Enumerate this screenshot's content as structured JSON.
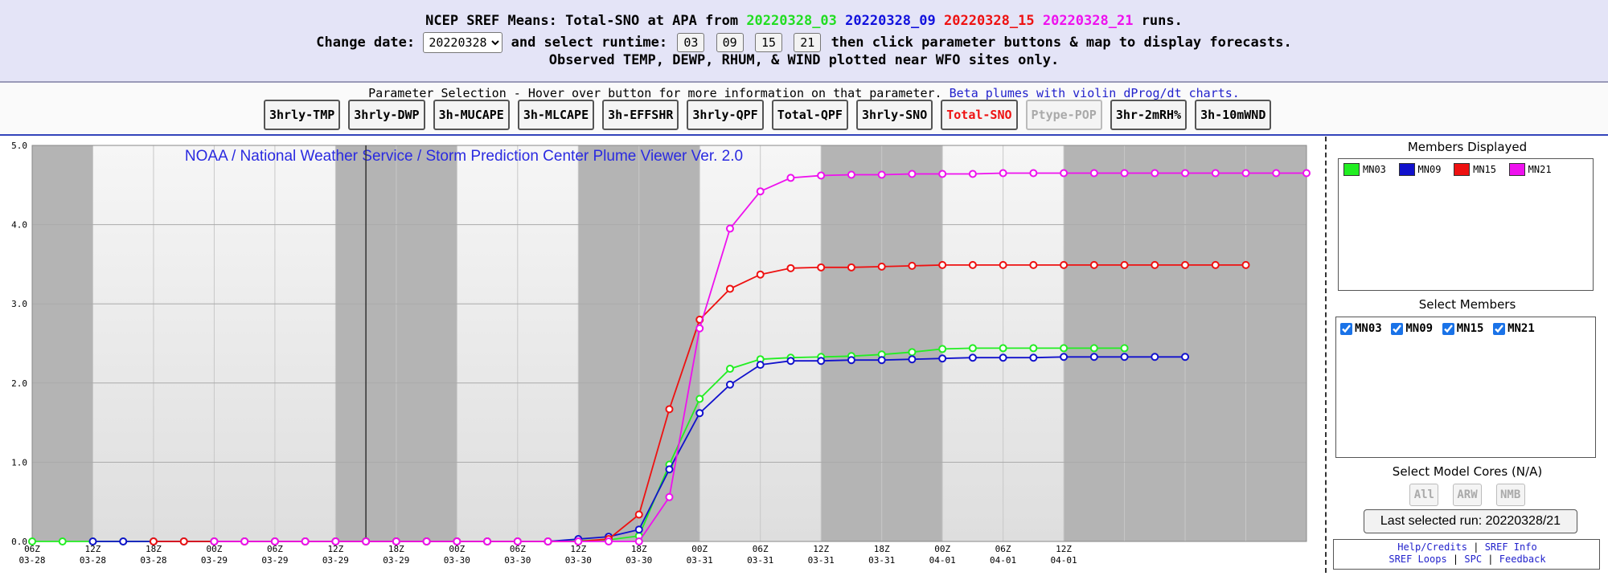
{
  "header": {
    "title_prefix": "NCEP SREF Means: Total-SNO at APA from",
    "runs": [
      {
        "label": "20220328_03",
        "color": "#22dd22"
      },
      {
        "label": "20220328_09",
        "color": "#1111dd"
      },
      {
        "label": "20220328_15",
        "color": "#ee1111"
      },
      {
        "label": "20220328_21",
        "color": "#ee11ee"
      }
    ],
    "title_suffix": "runs.",
    "change_date_label": "Change date:",
    "date_value": "20220328",
    "select_runtime_label": "and select runtime:",
    "runtimes": [
      "03",
      "09",
      "15",
      "21"
    ],
    "runtime_suffix": "then click parameter buttons & map to display forecasts.",
    "observed_note": "Observed TEMP, DEWP, RHUM, & WIND plotted near WFO sites only."
  },
  "params": {
    "label": "Parameter Selection - Hover over button for more information on that parameter.",
    "beta_link": "Beta plumes with violin dProg/dt charts.",
    "buttons": [
      {
        "label": "3hrly-TMP",
        "state": "normal"
      },
      {
        "label": "3hrly-DWP",
        "state": "normal"
      },
      {
        "label": "3h-MUCAPE",
        "state": "normal"
      },
      {
        "label": "3h-MLCAPE",
        "state": "normal"
      },
      {
        "label": "3h-EFFSHR",
        "state": "normal"
      },
      {
        "label": "3hrly-QPF",
        "state": "normal"
      },
      {
        "label": "Total-QPF",
        "state": "normal"
      },
      {
        "label": "3hrly-SNO",
        "state": "normal"
      },
      {
        "label": "Total-SNO",
        "state": "active"
      },
      {
        "label": "Ptype-POP",
        "state": "disabled"
      },
      {
        "label": "3hr-2mRH%",
        "state": "normal"
      },
      {
        "label": "3h-10mWND",
        "state": "normal"
      }
    ]
  },
  "chart_data": {
    "type": "line",
    "title": "NOAA / National Weather Service / Storm Prediction Center Plume Viewer Ver. 2.0",
    "ylim": [
      0,
      5
    ],
    "y_ticks": [
      "0.0",
      "1.0",
      "2.0",
      "3.0",
      "4.0",
      "5.0"
    ],
    "x_tick_labels": [
      [
        "06Z",
        "03-28"
      ],
      [
        "12Z",
        "03-28"
      ],
      [
        "18Z",
        "03-28"
      ],
      [
        "00Z",
        "03-29"
      ],
      [
        "06Z",
        "03-29"
      ],
      [
        "12Z",
        "03-29"
      ],
      [
        "18Z",
        "03-29"
      ],
      [
        "00Z",
        "03-30"
      ],
      [
        "06Z",
        "03-30"
      ],
      [
        "12Z",
        "03-30"
      ],
      [
        "18Z",
        "03-30"
      ],
      [
        "00Z",
        "03-31"
      ],
      [
        "06Z",
        "03-31"
      ],
      [
        "12Z",
        "03-31"
      ],
      [
        "18Z",
        "03-31"
      ],
      [
        "00Z",
        "04-01"
      ],
      [
        "06Z",
        "04-01"
      ],
      [
        "12Z",
        "04-01"
      ]
    ],
    "x_unit": "hours since 2022-03-28 06Z",
    "current_time_hours": 33,
    "grid": true,
    "series": [
      {
        "name": "MN03",
        "color": "#22ee22",
        "x": [
          0,
          3,
          6,
          9,
          12,
          15,
          18,
          21,
          24,
          27,
          30,
          33,
          36,
          39,
          42,
          45,
          48,
          51,
          54,
          57,
          60,
          63,
          66,
          69,
          72,
          75,
          78,
          81,
          84,
          87,
          90,
          93,
          96,
          99,
          102,
          105,
          108
        ],
        "y": [
          0,
          0,
          0,
          0,
          0,
          0,
          0,
          0,
          0,
          0,
          0,
          0,
          0,
          0,
          0,
          0,
          0,
          0,
          0.01,
          0.02,
          0.07,
          0.97,
          1.8,
          2.18,
          2.3,
          2.32,
          2.33,
          2.34,
          2.36,
          2.39,
          2.43,
          2.44,
          2.44,
          2.44,
          2.44,
          2.44,
          2.44
        ]
      },
      {
        "name": "MN09",
        "color": "#1111cc",
        "x": [
          6,
          9,
          12,
          15,
          18,
          21,
          24,
          27,
          30,
          33,
          36,
          39,
          42,
          45,
          48,
          51,
          54,
          57,
          60,
          63,
          66,
          69,
          72,
          75,
          78,
          81,
          84,
          87,
          90,
          93,
          96,
          99,
          102,
          105,
          108,
          111,
          114
        ],
        "y": [
          0,
          0,
          0,
          0,
          0,
          0,
          0,
          0,
          0,
          0,
          0,
          0,
          0,
          0,
          0,
          0,
          0.03,
          0.06,
          0.15,
          0.91,
          1.62,
          1.98,
          2.23,
          2.28,
          2.28,
          2.29,
          2.29,
          2.3,
          2.31,
          2.32,
          2.32,
          2.32,
          2.33,
          2.33,
          2.33,
          2.33,
          2.33
        ]
      },
      {
        "name": "MN15",
        "color": "#ee1111",
        "x": [
          12,
          15,
          18,
          21,
          24,
          27,
          30,
          33,
          36,
          39,
          42,
          45,
          48,
          51,
          54,
          57,
          60,
          63,
          66,
          69,
          72,
          75,
          78,
          81,
          84,
          87,
          90,
          93,
          96,
          99,
          102,
          105,
          108,
          111,
          114,
          117,
          120
        ],
        "y": [
          0,
          0,
          0,
          0,
          0,
          0,
          0,
          0,
          0,
          0,
          0,
          0,
          0,
          0,
          0,
          0.03,
          0.34,
          1.67,
          2.8,
          3.19,
          3.37,
          3.45,
          3.46,
          3.46,
          3.47,
          3.48,
          3.49,
          3.49,
          3.49,
          3.49,
          3.49,
          3.49,
          3.49,
          3.49,
          3.49,
          3.49,
          3.49
        ]
      },
      {
        "name": "MN21",
        "color": "#ee11ee",
        "x": [
          18,
          21,
          24,
          27,
          30,
          33,
          36,
          39,
          42,
          45,
          48,
          51,
          54,
          57,
          60,
          63,
          66,
          69,
          72,
          75,
          78,
          81,
          84,
          87,
          90,
          93,
          96,
          99,
          102,
          105,
          108,
          111,
          114,
          117,
          120,
          123,
          126
        ],
        "y": [
          0,
          0,
          0,
          0,
          0,
          0,
          0,
          0,
          0,
          0,
          0,
          0,
          0,
          0,
          0,
          0.56,
          2.69,
          3.95,
          4.42,
          4.59,
          4.62,
          4.63,
          4.63,
          4.64,
          4.64,
          4.64,
          4.65,
          4.65,
          4.65,
          4.65,
          4.65,
          4.65,
          4.65,
          4.65,
          4.65,
          4.65,
          4.65
        ]
      }
    ]
  },
  "sidebar": {
    "members_displayed_title": "Members Displayed",
    "legend": [
      {
        "name": "MN03",
        "color": "#22ee22"
      },
      {
        "name": "MN09",
        "color": "#1111cc"
      },
      {
        "name": "MN15",
        "color": "#ee1111"
      },
      {
        "name": "MN21",
        "color": "#ee11ee"
      }
    ],
    "select_members_title": "Select Members",
    "members": [
      "MN03",
      "MN09",
      "MN15",
      "MN21"
    ],
    "select_cores_title": "Select Model Cores (N/A)",
    "cores": [
      "All",
      "ARW",
      "NMB"
    ],
    "last_run": "Last selected run: 20220328/21",
    "links_row1": {
      "help": "Help/Credits",
      "sep": "|",
      "sref": "SREF Info"
    },
    "links_row2": {
      "loops": "SREF Loops",
      "sep1": "|",
      "spc": "SPC",
      "sep2": "|",
      "feedback": "Feedback"
    }
  }
}
